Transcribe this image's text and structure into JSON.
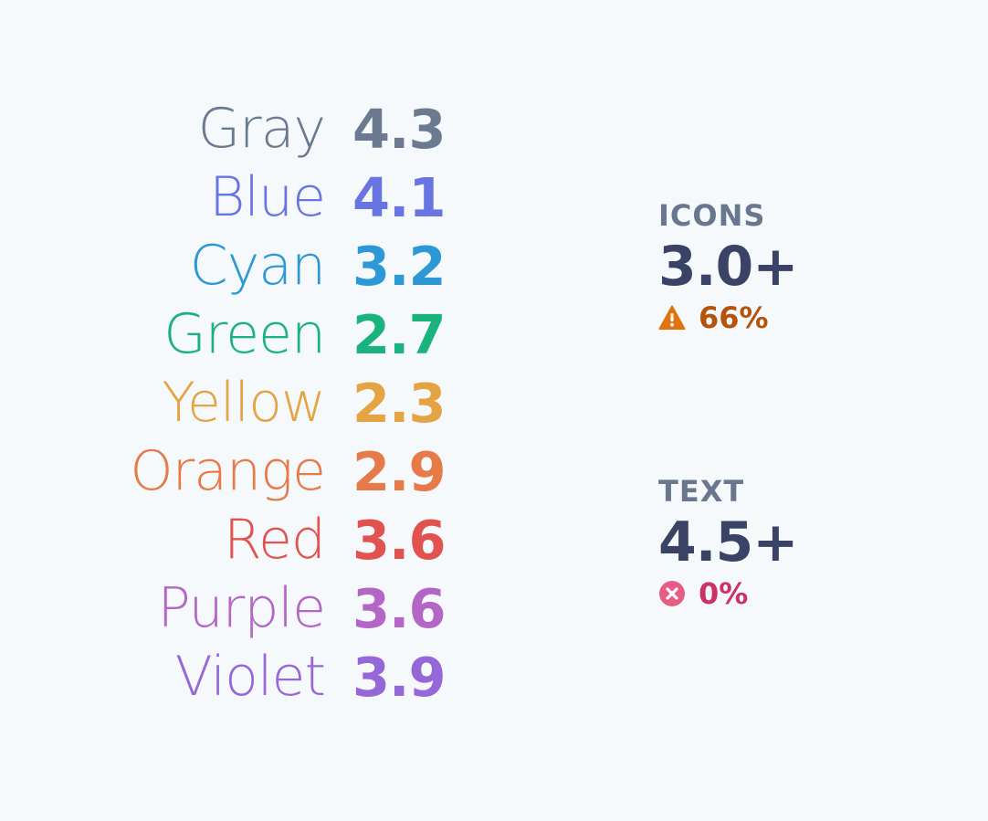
{
  "colors": [
    {
      "name": "Gray",
      "value": "4.3",
      "color": "#6b7a90"
    },
    {
      "name": "Blue",
      "value": "4.1",
      "color": "#6774e2"
    },
    {
      "name": "Cyan",
      "value": "3.2",
      "color": "#2c98d6"
    },
    {
      "name": "Green",
      "value": "2.7",
      "color": "#1bb37d"
    },
    {
      "name": "Yellow",
      "value": "2.3",
      "color": "#e5a444"
    },
    {
      "name": "Orange",
      "value": "2.9",
      "color": "#e67a48"
    },
    {
      "name": "Red",
      "value": "3.6",
      "color": "#e2524f"
    },
    {
      "name": "Purple",
      "value": "3.6",
      "color": "#b466c7"
    },
    {
      "name": "Violet",
      "value": "3.9",
      "color": "#9567d9"
    }
  ],
  "icons": {
    "heading": "ICONS",
    "value": "3.0+",
    "status_icon": "warning-icon",
    "status_text": "66%",
    "status_color": "#b5530b",
    "icon_color": "#e0730f"
  },
  "text": {
    "heading": "TEXT",
    "value": "4.5+",
    "status_icon": "error-icon",
    "status_text": "0%",
    "status_color": "#cd3267",
    "icon_color": "#e65d84"
  }
}
